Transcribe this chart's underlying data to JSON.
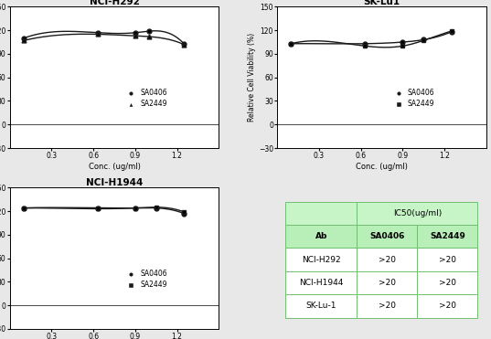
{
  "plots": [
    {
      "title": "NCI-H292",
      "sa0406_x": [
        0.1,
        0.63,
        0.9,
        1.0,
        1.25
      ],
      "sa0406_y": [
        110,
        117,
        117,
        119,
        103
      ],
      "sa2449_x": [
        0.1,
        0.63,
        0.9,
        1.0,
        1.25
      ],
      "sa2449_y": [
        107,
        115,
        113,
        112,
        102
      ],
      "sa0406_marker": "o",
      "sa2449_marker": "^",
      "line_close": false
    },
    {
      "title": "SK-Lu1",
      "sa0406_x": [
        0.1,
        0.63,
        0.9,
        1.05,
        1.25
      ],
      "sa0406_y": [
        103,
        103,
        105,
        108,
        118
      ],
      "sa2449_x": [
        0.1,
        0.63,
        0.9,
        1.05,
        1.25
      ],
      "sa2449_y": [
        103,
        100,
        100,
        107,
        119
      ],
      "sa0406_marker": "o",
      "sa2449_marker": "s",
      "line_close": true
    },
    {
      "title": "NCI-H1944",
      "sa0406_x": [
        0.1,
        0.63,
        0.9,
        1.05,
        1.25
      ],
      "sa0406_y": [
        124,
        124,
        124,
        124,
        117
      ],
      "sa2449_x": [
        0.1,
        0.63,
        0.9,
        1.05,
        1.25
      ],
      "sa2449_y": [
        124,
        123,
        124,
        125,
        119
      ],
      "sa0406_marker": "o",
      "sa2449_marker": "s",
      "line_close": false
    }
  ],
  "table": {
    "header1": "IC50(ug/ml)",
    "col_labels": [
      "Ab",
      "SA0406",
      "SA2449"
    ],
    "rows": [
      [
        "NCI-H292",
        ">20",
        ">20"
      ],
      [
        "NCI-H1944",
        ">20",
        ">20"
      ],
      [
        "SK-Lu-1",
        ">20",
        ">20"
      ]
    ],
    "header_bg": "#c8f5c8",
    "col_bg": "#b8eeb8",
    "cell_bg": "#ffffff",
    "border_color": "#70c070"
  },
  "xlabel": "Conc. (ug/ml)",
  "ylabel": "Relative Cell Viability (%)",
  "xlim": [
    0.0,
    1.5
  ],
  "ylim": [
    -30,
    150
  ],
  "yticks": [
    -30,
    0,
    30,
    60,
    90,
    120,
    150
  ],
  "xticks": [
    0.3,
    0.6,
    0.9,
    1.2
  ],
  "line_color": "#1a1a1a",
  "marker_color": "#1a1a1a",
  "legend_labels": [
    "SA0406",
    "SA2449"
  ],
  "bg_color": "#ffffff",
  "fig_bg": "#e8e8e8"
}
